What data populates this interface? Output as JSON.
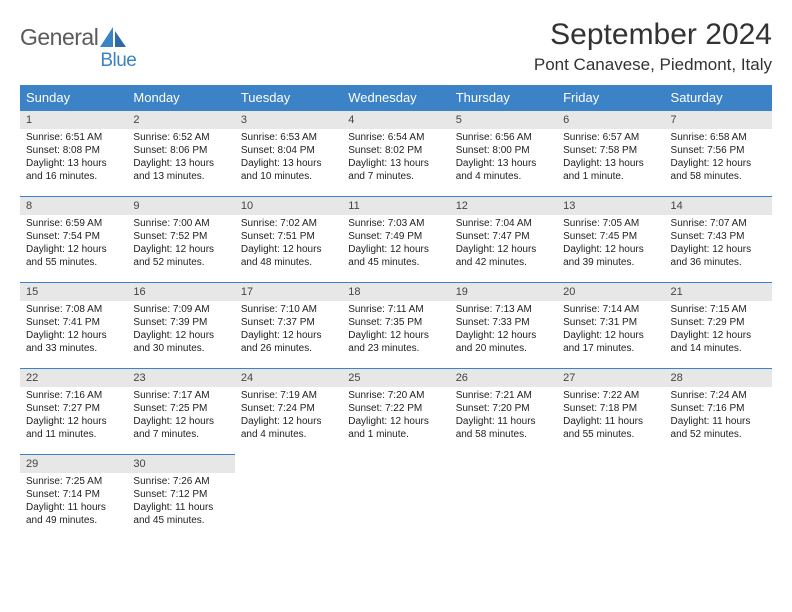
{
  "logo": {
    "text1": "General",
    "text2": "Blue"
  },
  "title": "September 2024",
  "location": "Pont Canavese, Piedmont, Italy",
  "weekdays": [
    "Sunday",
    "Monday",
    "Tuesday",
    "Wednesday",
    "Thursday",
    "Friday",
    "Saturday"
  ],
  "colors": {
    "header_bg": "#3b82c7",
    "header_text": "#ffffff",
    "daynum_bg": "#e7e7e7",
    "logo_blue": "#3b82c7",
    "logo_gray": "#5a5a5a",
    "border": "#3b82c7"
  },
  "typography": {
    "title_fontsize": 30,
    "location_fontsize": 17,
    "weekday_fontsize": 13,
    "daynum_fontsize": 11,
    "body_fontsize": 10
  },
  "weeks": [
    [
      {
        "num": "1",
        "sunrise": "Sunrise: 6:51 AM",
        "sunset": "Sunset: 8:08 PM",
        "daylight": "Daylight: 13 hours and 16 minutes."
      },
      {
        "num": "2",
        "sunrise": "Sunrise: 6:52 AM",
        "sunset": "Sunset: 8:06 PM",
        "daylight": "Daylight: 13 hours and 13 minutes."
      },
      {
        "num": "3",
        "sunrise": "Sunrise: 6:53 AM",
        "sunset": "Sunset: 8:04 PM",
        "daylight": "Daylight: 13 hours and 10 minutes."
      },
      {
        "num": "4",
        "sunrise": "Sunrise: 6:54 AM",
        "sunset": "Sunset: 8:02 PM",
        "daylight": "Daylight: 13 hours and 7 minutes."
      },
      {
        "num": "5",
        "sunrise": "Sunrise: 6:56 AM",
        "sunset": "Sunset: 8:00 PM",
        "daylight": "Daylight: 13 hours and 4 minutes."
      },
      {
        "num": "6",
        "sunrise": "Sunrise: 6:57 AM",
        "sunset": "Sunset: 7:58 PM",
        "daylight": "Daylight: 13 hours and 1 minute."
      },
      {
        "num": "7",
        "sunrise": "Sunrise: 6:58 AM",
        "sunset": "Sunset: 7:56 PM",
        "daylight": "Daylight: 12 hours and 58 minutes."
      }
    ],
    [
      {
        "num": "8",
        "sunrise": "Sunrise: 6:59 AM",
        "sunset": "Sunset: 7:54 PM",
        "daylight": "Daylight: 12 hours and 55 minutes."
      },
      {
        "num": "9",
        "sunrise": "Sunrise: 7:00 AM",
        "sunset": "Sunset: 7:52 PM",
        "daylight": "Daylight: 12 hours and 52 minutes."
      },
      {
        "num": "10",
        "sunrise": "Sunrise: 7:02 AM",
        "sunset": "Sunset: 7:51 PM",
        "daylight": "Daylight: 12 hours and 48 minutes."
      },
      {
        "num": "11",
        "sunrise": "Sunrise: 7:03 AM",
        "sunset": "Sunset: 7:49 PM",
        "daylight": "Daylight: 12 hours and 45 minutes."
      },
      {
        "num": "12",
        "sunrise": "Sunrise: 7:04 AM",
        "sunset": "Sunset: 7:47 PM",
        "daylight": "Daylight: 12 hours and 42 minutes."
      },
      {
        "num": "13",
        "sunrise": "Sunrise: 7:05 AM",
        "sunset": "Sunset: 7:45 PM",
        "daylight": "Daylight: 12 hours and 39 minutes."
      },
      {
        "num": "14",
        "sunrise": "Sunrise: 7:07 AM",
        "sunset": "Sunset: 7:43 PM",
        "daylight": "Daylight: 12 hours and 36 minutes."
      }
    ],
    [
      {
        "num": "15",
        "sunrise": "Sunrise: 7:08 AM",
        "sunset": "Sunset: 7:41 PM",
        "daylight": "Daylight: 12 hours and 33 minutes."
      },
      {
        "num": "16",
        "sunrise": "Sunrise: 7:09 AM",
        "sunset": "Sunset: 7:39 PM",
        "daylight": "Daylight: 12 hours and 30 minutes."
      },
      {
        "num": "17",
        "sunrise": "Sunrise: 7:10 AM",
        "sunset": "Sunset: 7:37 PM",
        "daylight": "Daylight: 12 hours and 26 minutes."
      },
      {
        "num": "18",
        "sunrise": "Sunrise: 7:11 AM",
        "sunset": "Sunset: 7:35 PM",
        "daylight": "Daylight: 12 hours and 23 minutes."
      },
      {
        "num": "19",
        "sunrise": "Sunrise: 7:13 AM",
        "sunset": "Sunset: 7:33 PM",
        "daylight": "Daylight: 12 hours and 20 minutes."
      },
      {
        "num": "20",
        "sunrise": "Sunrise: 7:14 AM",
        "sunset": "Sunset: 7:31 PM",
        "daylight": "Daylight: 12 hours and 17 minutes."
      },
      {
        "num": "21",
        "sunrise": "Sunrise: 7:15 AM",
        "sunset": "Sunset: 7:29 PM",
        "daylight": "Daylight: 12 hours and 14 minutes."
      }
    ],
    [
      {
        "num": "22",
        "sunrise": "Sunrise: 7:16 AM",
        "sunset": "Sunset: 7:27 PM",
        "daylight": "Daylight: 12 hours and 11 minutes."
      },
      {
        "num": "23",
        "sunrise": "Sunrise: 7:17 AM",
        "sunset": "Sunset: 7:25 PM",
        "daylight": "Daylight: 12 hours and 7 minutes."
      },
      {
        "num": "24",
        "sunrise": "Sunrise: 7:19 AM",
        "sunset": "Sunset: 7:24 PM",
        "daylight": "Daylight: 12 hours and 4 minutes."
      },
      {
        "num": "25",
        "sunrise": "Sunrise: 7:20 AM",
        "sunset": "Sunset: 7:22 PM",
        "daylight": "Daylight: 12 hours and 1 minute."
      },
      {
        "num": "26",
        "sunrise": "Sunrise: 7:21 AM",
        "sunset": "Sunset: 7:20 PM",
        "daylight": "Daylight: 11 hours and 58 minutes."
      },
      {
        "num": "27",
        "sunrise": "Sunrise: 7:22 AM",
        "sunset": "Sunset: 7:18 PM",
        "daylight": "Daylight: 11 hours and 55 minutes."
      },
      {
        "num": "28",
        "sunrise": "Sunrise: 7:24 AM",
        "sunset": "Sunset: 7:16 PM",
        "daylight": "Daylight: 11 hours and 52 minutes."
      }
    ],
    [
      {
        "num": "29",
        "sunrise": "Sunrise: 7:25 AM",
        "sunset": "Sunset: 7:14 PM",
        "daylight": "Daylight: 11 hours and 49 minutes."
      },
      {
        "num": "30",
        "sunrise": "Sunrise: 7:26 AM",
        "sunset": "Sunset: 7:12 PM",
        "daylight": "Daylight: 11 hours and 45 minutes."
      },
      null,
      null,
      null,
      null,
      null
    ]
  ]
}
